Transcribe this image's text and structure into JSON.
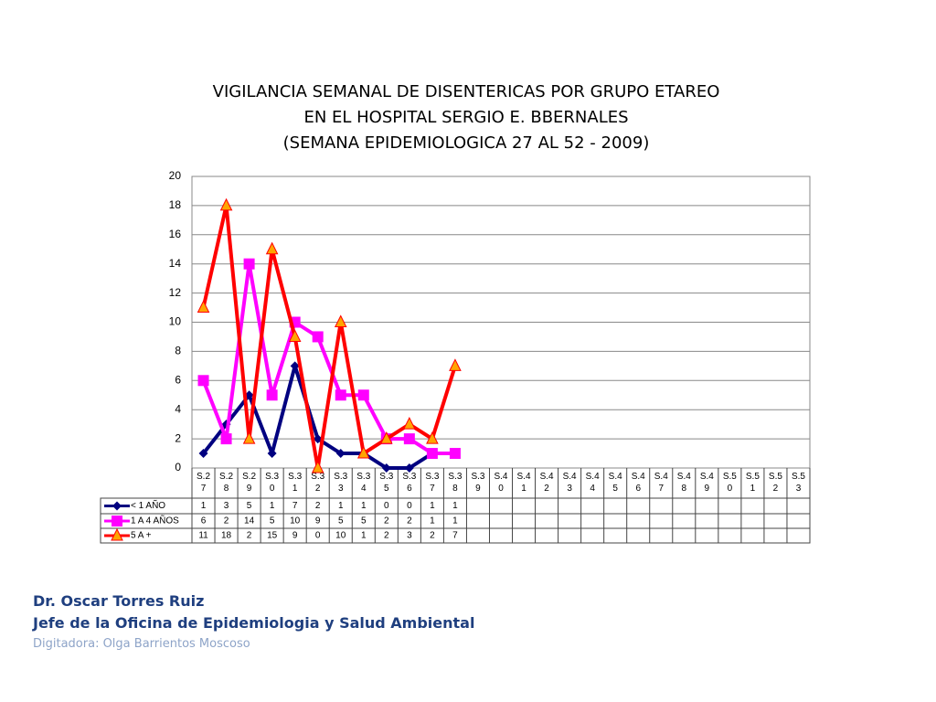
{
  "chart_data": {
    "type": "line",
    "title": [
      "VIGILANCIA SEMANAL DE DISENTERICAS POR GRUPO ETAREO",
      "EN EL HOSPITAL SERGIO E. BBERNALES",
      "(SEMANA EPIDEMIOLOGICA 27 AL 52 - 2009)"
    ],
    "categories": [
      "S.27",
      "S.28",
      "S.29",
      "S.30",
      "S.31",
      "S.32",
      "S.33",
      "S.34",
      "S.35",
      "S.36",
      "S.37",
      "S.38",
      "S.39",
      "S.40",
      "S.41",
      "S.42",
      "S.43",
      "S.44",
      "S.45",
      "S.46",
      "S.47",
      "S.48",
      "S.49",
      "S.50",
      "S.51",
      "S.52",
      "S.53"
    ],
    "series": [
      {
        "name": "< 1 AÑO",
        "color": "#000080",
        "marker": "diamond",
        "values": [
          1,
          3,
          5,
          1,
          7,
          2,
          1,
          1,
          0,
          0,
          1,
          1,
          null,
          null,
          null,
          null,
          null,
          null,
          null,
          null,
          null,
          null,
          null,
          null,
          null,
          null,
          null
        ]
      },
      {
        "name": "1 A 4 AÑOS",
        "color": "#ff00ff",
        "marker": "square",
        "values": [
          6,
          2,
          14,
          5,
          10,
          9,
          5,
          5,
          2,
          2,
          1,
          1,
          null,
          null,
          null,
          null,
          null,
          null,
          null,
          null,
          null,
          null,
          null,
          null,
          null,
          null,
          null
        ]
      },
      {
        "name": "5 A +",
        "color": "#ff0000",
        "marker": "triangle",
        "values": [
          11,
          18,
          2,
          15,
          9,
          0,
          10,
          1,
          2,
          3,
          2,
          7,
          null,
          null,
          null,
          null,
          null,
          null,
          null,
          null,
          null,
          null,
          null,
          null,
          null,
          null,
          null
        ]
      }
    ],
    "ylim": [
      0,
      20
    ],
    "yticks": [
      0,
      2,
      4,
      6,
      8,
      10,
      12,
      14,
      16,
      18,
      20
    ],
    "grid": true
  },
  "footer": {
    "author": "Dr.  Oscar  Torres Ruiz",
    "role": "Jefe de la Oficina de Epidemiologia y  Salud Ambiental",
    "typist": "Digitadora: Olga Barrientos Moscoso"
  }
}
